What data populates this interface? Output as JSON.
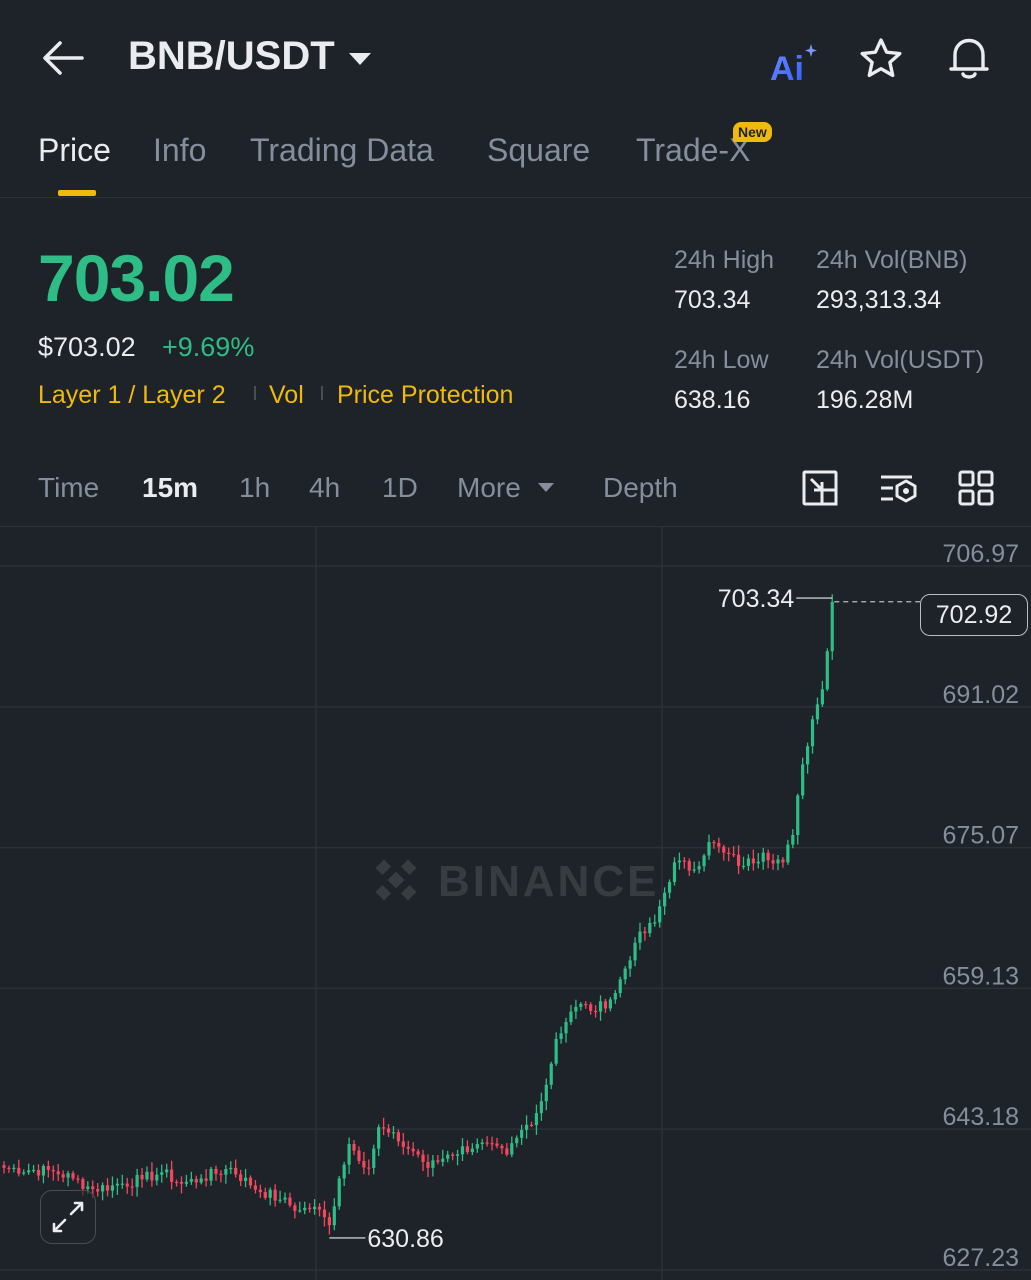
{
  "header": {
    "pair": "BNB/USDT",
    "ai_label": "Ai",
    "new_badge": "New"
  },
  "tabs": [
    {
      "label": "Price",
      "active": true
    },
    {
      "label": "Info"
    },
    {
      "label": "Trading Data"
    },
    {
      "label": "Square"
    },
    {
      "label": "Trade-X"
    }
  ],
  "ticker": {
    "price": "703.02",
    "usd_price": "$703.02",
    "change": "+9.69%",
    "tags": [
      "Layer 1 / Layer 2",
      "Vol",
      "Price Protection"
    ],
    "high_label": "24h High",
    "high": "703.34",
    "low_label": "24h Low",
    "low": "638.16",
    "vol_base_label": "24h Vol(BNB)",
    "vol_base": "293,313.34",
    "vol_quote_label": "24h Vol(USDT)",
    "vol_quote": "196.28M"
  },
  "intervals": [
    "Time",
    "15m",
    "1h",
    "4h",
    "1D",
    "More",
    "Depth"
  ],
  "active_interval": "15m",
  "colors": {
    "up": "#2ebd85",
    "down": "#f6465d",
    "accent": "#f0b90b",
    "bg": "#1e2329"
  },
  "chart_data": {
    "type": "candlestick",
    "y_ticks": [
      "706.97",
      "691.02",
      "675.07",
      "659.13",
      "643.18",
      "627.23"
    ],
    "ylim": [
      627.23,
      706.97
    ],
    "high_marker": "703.34",
    "low_marker": "630.86",
    "current_price": "702.92",
    "watermark": "BINANCE",
    "anchors": [
      [
        0,
        638.8
      ],
      [
        10,
        638.4
      ],
      [
        14,
        637.6
      ],
      [
        18,
        636.4
      ],
      [
        22,
        636.8
      ],
      [
        28,
        637.5
      ],
      [
        32,
        638.3
      ],
      [
        36,
        637.0
      ],
      [
        40,
        637.6
      ],
      [
        46,
        638.8
      ],
      [
        50,
        636.8
      ],
      [
        56,
        635.2
      ],
      [
        60,
        634.0
      ],
      [
        63,
        634.4
      ],
      [
        66,
        632.3
      ],
      [
        68,
        637.6
      ],
      [
        70,
        641.5
      ],
      [
        74,
        638.8
      ],
      [
        76,
        643.4
      ],
      [
        80,
        641.8
      ],
      [
        84,
        640.3
      ],
      [
        86,
        638.8
      ],
      [
        90,
        640.3
      ],
      [
        96,
        641.5
      ],
      [
        102,
        640.3
      ],
      [
        104,
        642.2
      ],
      [
        108,
        645.0
      ],
      [
        110,
        648.2
      ],
      [
        112,
        653.4
      ],
      [
        115,
        656.5
      ],
      [
        118,
        657.3
      ],
      [
        120,
        656.5
      ],
      [
        124,
        658.6
      ],
      [
        128,
        664.3
      ],
      [
        132,
        666.6
      ],
      [
        136,
        673.4
      ],
      [
        140,
        672.6
      ],
      [
        143,
        675.7
      ],
      [
        146,
        674.5
      ],
      [
        150,
        673.0
      ],
      [
        154,
        674.5
      ],
      [
        158,
        673.4
      ],
      [
        160,
        676.5
      ],
      [
        162,
        684.5
      ],
      [
        164,
        689.6
      ],
      [
        166,
        693.0
      ],
      [
        168,
        702.9
      ]
    ]
  }
}
